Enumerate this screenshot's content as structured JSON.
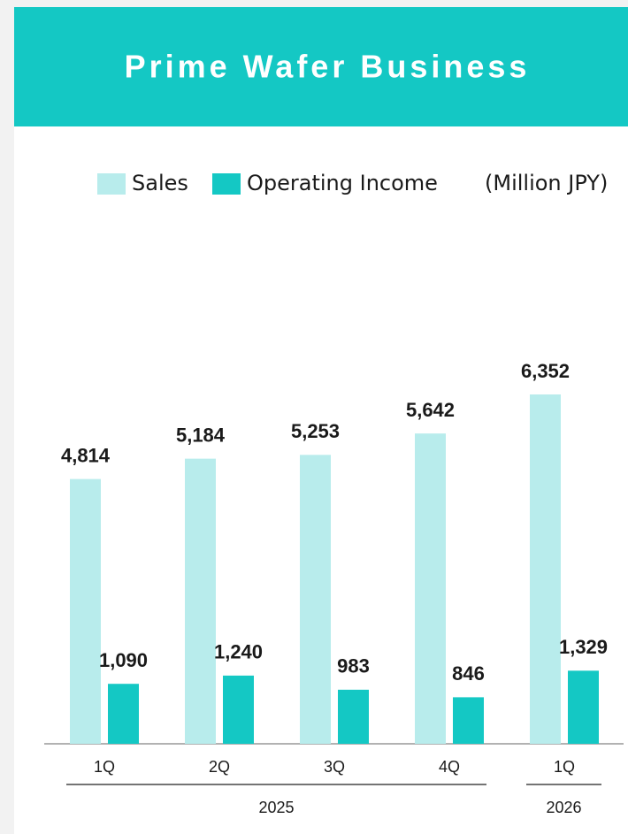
{
  "chart_data": {
    "type": "bar",
    "title": "Prime Wafer Business",
    "unit": "(Million JPY)",
    "groups": [
      {
        "name": "2025",
        "categories": [
          "1Q",
          "2Q",
          "3Q",
          "4Q"
        ]
      },
      {
        "name": "2026",
        "categories": [
          "1Q"
        ]
      }
    ],
    "series": [
      {
        "name": "Sales",
        "color": "#b8ecec",
        "values": [
          4814,
          5184,
          5253,
          5642,
          6352
        ],
        "value_labels": [
          "4,814",
          "5,184",
          "5,253",
          "5,642",
          "6,352"
        ]
      },
      {
        "name": "Operating Income",
        "color": "#14c8c4",
        "values": [
          1090,
          1240,
          983,
          846,
          1329
        ],
        "value_labels": [
          "1,090",
          "1,240",
          "983",
          "846",
          "1,329"
        ]
      }
    ]
  }
}
